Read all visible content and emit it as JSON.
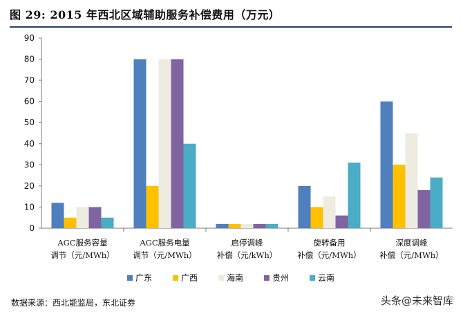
{
  "figure": {
    "title": "图 29: 2015 年西北区域辅助服务补偿费用（万元）",
    "source": "数据来源：西北能监局，东北证券",
    "watermark": "头条@未来智库"
  },
  "chart_data": {
    "type": "bar",
    "title": "",
    "xlabel": "",
    "ylabel": "",
    "ylim": [
      0,
      90
    ],
    "yticks": [
      0,
      10,
      20,
      30,
      40,
      50,
      60,
      70,
      80,
      90
    ],
    "grid": false,
    "legend_position": "bottom",
    "categories": [
      [
        "AGC服务容量",
        "调节（元/MWh）"
      ],
      [
        "AGC服务电量",
        "调节（元/MWh）"
      ],
      [
        "启停调峰",
        "补偿（元/kWh）"
      ],
      [
        "旋转备用",
        "补偿（元/MWh）"
      ],
      [
        "深度调峰",
        "补偿（元/MWh）"
      ]
    ],
    "series": [
      {
        "name": "广东",
        "color": "#4f7fbd",
        "values": [
          12,
          80,
          2,
          20,
          60
        ]
      },
      {
        "name": "广西",
        "color": "#ffc000",
        "values": [
          5,
          20,
          2,
          10,
          30
        ]
      },
      {
        "name": "海南",
        "color": "#eeece1",
        "values": [
          10,
          80,
          2,
          15,
          45
        ]
      },
      {
        "name": "贵州",
        "color": "#8064a2",
        "values": [
          10,
          80,
          2,
          6,
          18
        ]
      },
      {
        "name": "云南",
        "color": "#4bacc6",
        "values": [
          5,
          40,
          2,
          31,
          24
        ]
      }
    ]
  }
}
